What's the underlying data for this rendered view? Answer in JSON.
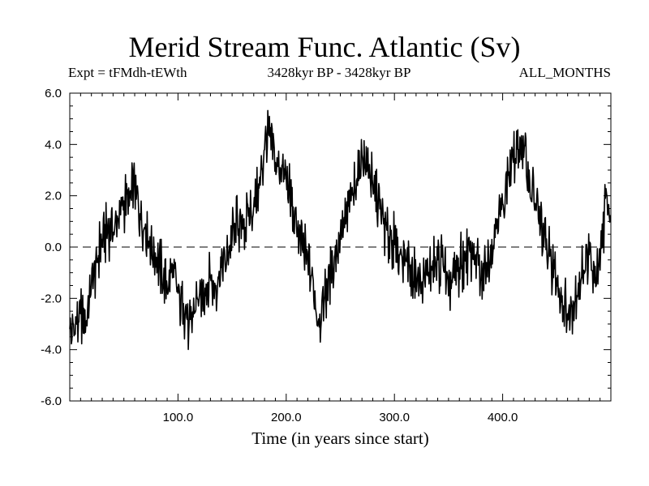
{
  "chart_data": {
    "type": "line",
    "title": "Merid Stream Func. Atlantic (Sv)",
    "subtitle_left": "Expt = tFMdh-tEWth",
    "subtitle_center": "3428kyr BP - 3428kyr BP",
    "subtitle_right": "ALL_MONTHS",
    "xlabel": "Time (in years since start)",
    "ylabel": "",
    "xlim": [
      0,
      500
    ],
    "ylim": [
      -6.0,
      6.0
    ],
    "xticks": [
      100,
      200,
      300,
      400
    ],
    "xtick_labels": [
      "100.0",
      "200.0",
      "300.0",
      "400.0"
    ],
    "yticks": [
      -6,
      -4,
      -2,
      0,
      2,
      4,
      6
    ],
    "ytick_labels": [
      "-6.0",
      "-4.0",
      "-2.0",
      "0.0",
      "2.0",
      "4.0",
      "6.0"
    ],
    "reference_line": {
      "y": 0,
      "style": "dashed"
    },
    "series": [
      {
        "name": "Merid Stream Func. Atlantic",
        "x": [
          0,
          5,
          10,
          15,
          20,
          25,
          30,
          35,
          40,
          45,
          50,
          55,
          60,
          65,
          70,
          75,
          80,
          85,
          90,
          95,
          100,
          105,
          110,
          115,
          120,
          125,
          130,
          135,
          140,
          145,
          150,
          155,
          160,
          165,
          170,
          175,
          180,
          185,
          190,
          195,
          200,
          205,
          210,
          215,
          220,
          225,
          230,
          235,
          240,
          245,
          250,
          255,
          260,
          265,
          270,
          275,
          280,
          285,
          290,
          295,
          300,
          305,
          310,
          315,
          320,
          325,
          330,
          335,
          340,
          345,
          350,
          355,
          360,
          365,
          370,
          375,
          380,
          385,
          390,
          395,
          400,
          405,
          410,
          415,
          420,
          425,
          430,
          435,
          440,
          445,
          450,
          455,
          460,
          465,
          470,
          475,
          480,
          485,
          490,
          495,
          500
        ],
        "values": [
          -3.2,
          -3.4,
          -2.6,
          -2.9,
          -1.5,
          -0.6,
          0.3,
          0.8,
          0.5,
          1.1,
          1.8,
          1.6,
          2.4,
          1.3,
          0.9,
          0.1,
          -0.4,
          -0.9,
          -1.6,
          -1.2,
          -1.8,
          -2.2,
          -3.3,
          -2.6,
          -1.8,
          -1.6,
          -1.2,
          -1.5,
          -0.8,
          -0.5,
          0.3,
          0.9,
          0.7,
          1.2,
          1.6,
          2.3,
          3.8,
          4.3,
          3.3,
          3.0,
          2.7,
          1.6,
          0.4,
          -0.1,
          -0.6,
          -1.3,
          -2.8,
          -2.2,
          -1.1,
          -0.3,
          0.4,
          0.9,
          1.8,
          2.6,
          3.6,
          3.1,
          2.4,
          1.7,
          0.9,
          0.4,
          0.1,
          -0.3,
          -0.1,
          -0.7,
          -1.2,
          -1.6,
          -1.1,
          -0.9,
          -0.5,
          -0.7,
          -1.9,
          -1.2,
          -0.8,
          -0.4,
          -0.2,
          -0.3,
          -1.3,
          -0.6,
          0.3,
          1.1,
          1.7,
          2.8,
          3.3,
          3.8,
          3.9,
          2.6,
          1.7,
          0.8,
          -0.1,
          -0.6,
          -1.2,
          -1.9,
          -2.6,
          -2.1,
          -1.4,
          -0.9,
          -0.3,
          -1.4,
          -0.9,
          1.9,
          1.2
        ]
      }
    ]
  }
}
